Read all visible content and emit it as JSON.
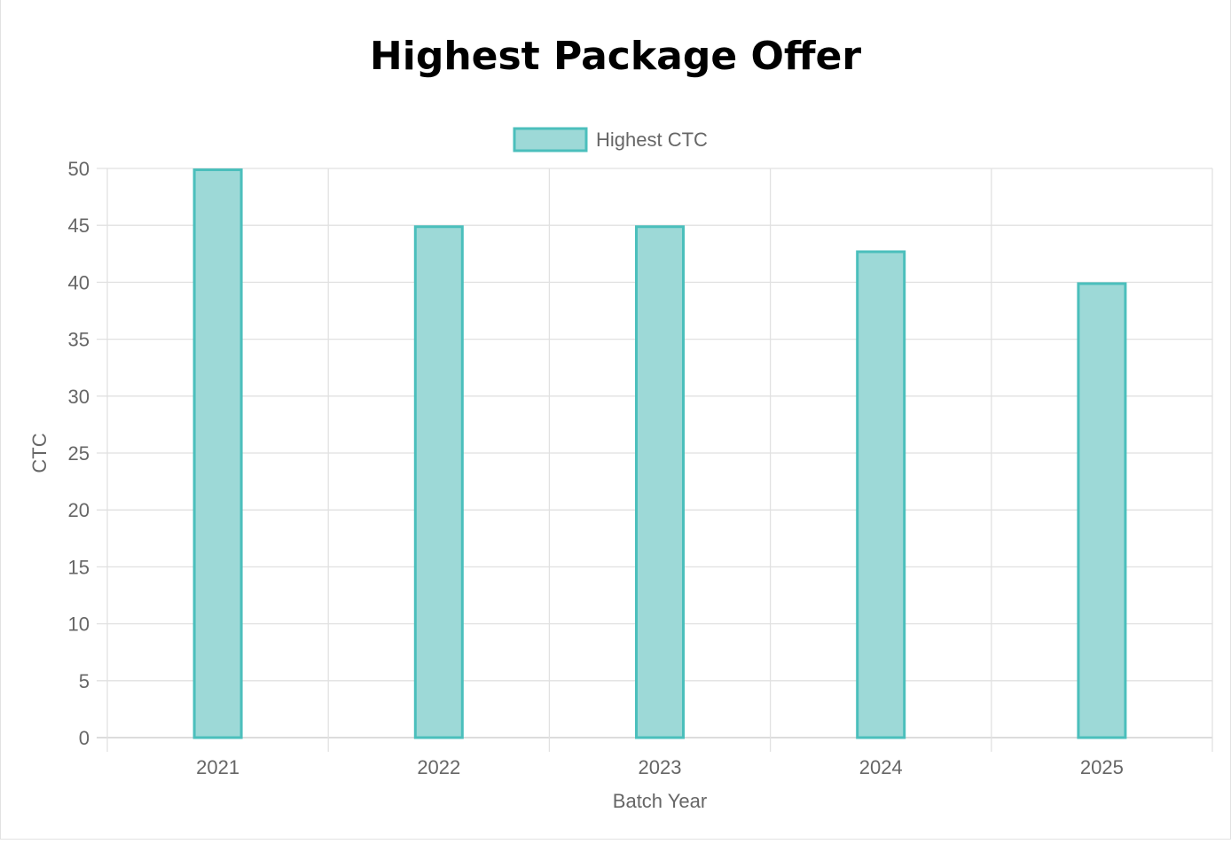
{
  "chart_data": {
    "type": "bar",
    "title": "Highest Package Offer",
    "legend": {
      "label": "Highest CTC",
      "placement": "top-center"
    },
    "categories": [
      "2021",
      "2022",
      "2023",
      "2024",
      "2025"
    ],
    "series": [
      {
        "name": "Highest CTC",
        "values": [
          50,
          45,
          45,
          42.8,
          40
        ]
      }
    ],
    "xlabel": "Batch Year",
    "ylabel": "CTC",
    "ylim": [
      0,
      50
    ],
    "yticks": [
      0,
      5,
      10,
      15,
      20,
      25,
      30,
      35,
      40,
      45,
      50
    ],
    "grid": true,
    "colors": {
      "fill": "#9dd9d7",
      "border": "#4bbfbc",
      "grid": "#e1e1e1",
      "text": "#666666",
      "title": "#000000"
    }
  }
}
